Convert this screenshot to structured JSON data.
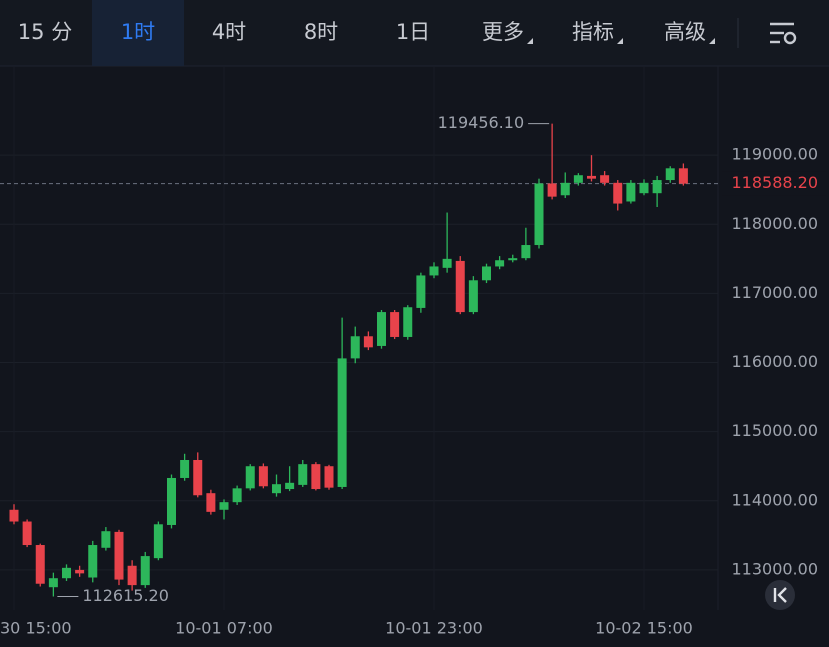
{
  "tabs": [
    "15 分",
    "1时",
    "4时",
    "8时",
    "1日",
    "更多",
    "指标",
    "高级"
  ],
  "active_tab": 1,
  "chart_data": {
    "type": "candlestick",
    "up_color": "#2db75b",
    "down_color": "#e8434b",
    "categories": [
      "30 15:00",
      null,
      null,
      null,
      null,
      null,
      null,
      null,
      null,
      null,
      null,
      null,
      null,
      null,
      null,
      null,
      "10-01 07:00",
      null,
      null,
      null,
      null,
      null,
      null,
      null,
      null,
      null,
      null,
      null,
      null,
      null,
      null,
      null,
      "10-01 23:00",
      null,
      null,
      null,
      null,
      null,
      null,
      null,
      null,
      null,
      null,
      null,
      null,
      null,
      null,
      null,
      "10-02 15:00",
      null,
      null,
      null
    ],
    "open": [
      113870,
      113700,
      113360,
      112750,
      112880,
      113000,
      112890,
      113320,
      113550,
      113060,
      112780,
      113170,
      113650,
      114330,
      114590,
      114110,
      113870,
      113980,
      114180,
      114500,
      114110,
      114170,
      114230,
      114530,
      114500,
      114200,
      116060,
      116380,
      116240,
      116730,
      116370,
      116790,
      117260,
      117370,
      117470,
      116730,
      117190,
      117390,
      117480,
      117510,
      117700,
      118590,
      118420,
      118600,
      118700,
      118710,
      118600,
      118330,
      118450,
      118450,
      118640,
      118810
    ],
    "high": [
      113950,
      113730,
      113380,
      112960,
      113080,
      113060,
      113420,
      113620,
      113580,
      113140,
      113260,
      113700,
      114380,
      114680,
      114700,
      114160,
      114020,
      114220,
      114530,
      114540,
      114380,
      114500,
      114590,
      114560,
      114520,
      116650,
      116520,
      116450,
      116760,
      116760,
      116830,
      117300,
      117450,
      118170,
      117540,
      117250,
      117430,
      117540,
      117560,
      117950,
      118660,
      119456.1,
      118750,
      118740,
      119000,
      118770,
      118640,
      118640,
      118650,
      118700,
      118840,
      118880
    ],
    "low": [
      113660,
      113330,
      112760,
      112615.2,
      112840,
      112900,
      112820,
      113280,
      112780,
      112700,
      112740,
      113140,
      113600,
      114290,
      114050,
      113800,
      113730,
      113940,
      114150,
      114180,
      114060,
      114140,
      114200,
      114150,
      114160,
      114170,
      115990,
      116180,
      116200,
      116340,
      116330,
      116720,
      117220,
      117300,
      116700,
      116700,
      117150,
      117350,
      117450,
      117480,
      117650,
      118360,
      118380,
      118560,
      118620,
      118560,
      118200,
      118300,
      118420,
      118250,
      118600,
      118560
    ],
    "close": [
      113700,
      113360,
      112800,
      112880,
      113030,
      112950,
      113360,
      113560,
      112860,
      112780,
      113200,
      113660,
      114330,
      114590,
      114080,
      113840,
      113980,
      114180,
      114500,
      114210,
      114240,
      114260,
      114530,
      114170,
      114190,
      116060,
      116380,
      116220,
      116730,
      116370,
      116800,
      117260,
      117390,
      117500,
      116730,
      117190,
      117390,
      117480,
      117510,
      117700,
      118590,
      118400,
      118600,
      118710,
      118660,
      118600,
      118300,
      118600,
      118600,
      118640,
      118810,
      118588.2
    ],
    "ylim": [
      112420,
      120290
    ],
    "yticks": [
      {
        "value": 113000,
        "label": "113000.00"
      },
      {
        "value": 114000,
        "label": "114000.00"
      },
      {
        "value": 115000,
        "label": "115000.00"
      },
      {
        "value": 116000,
        "label": "116000.00"
      },
      {
        "value": 117000,
        "label": "117000.00"
      },
      {
        "value": 118000,
        "label": "118000.00"
      },
      {
        "value": 119000,
        "label": "119000.00"
      }
    ],
    "max_marker": {
      "value": 119456.1,
      "label": "119456.10"
    },
    "min_marker": {
      "value": 112615.2,
      "label": "112615.20"
    },
    "last_price": {
      "value": 118588.2,
      "label": "118588.20"
    },
    "grid": true
  }
}
